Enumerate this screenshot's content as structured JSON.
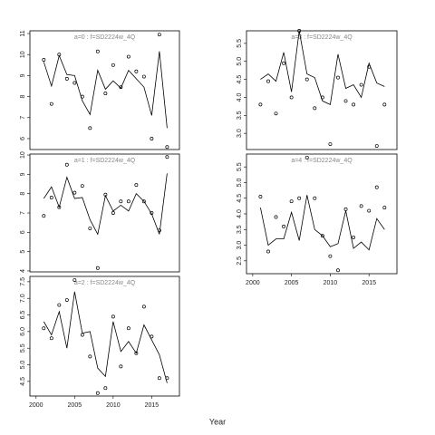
{
  "xlabel": "Year",
  "chart_data": [
    {
      "type": "line",
      "title": "a=0  :  f=SD2224w_4Q",
      "x": [
        2001,
        2002,
        2003,
        2004,
        2005,
        2006,
        2007,
        2008,
        2009,
        2010,
        2011,
        2012,
        2013,
        2014,
        2015,
        2016,
        2017
      ],
      "xlim": [
        1999.2,
        2018.6
      ],
      "ylim": [
        5.48,
        11.13
      ],
      "yticks": [
        6,
        7,
        8,
        9,
        10,
        11
      ],
      "series": [
        {
          "style": "line",
          "color": "#000000",
          "values": [
            9.65,
            8.5,
            9.95,
            9.05,
            9.0,
            7.8,
            7.15,
            9.25,
            8.35,
            8.75,
            8.4,
            9.25,
            8.85,
            8.45,
            7.1,
            10.15,
            6.5
          ]
        },
        {
          "style": "points",
          "color": "#000000",
          "values": [
            9.75,
            7.65,
            10.0,
            8.85,
            8.65,
            8.0,
            6.5,
            10.15,
            8.15,
            9.5,
            8.45,
            9.9,
            9.2,
            8.95,
            6.0,
            10.95,
            5.6
          ]
        }
      ]
    },
    {
      "type": "line",
      "title": "a=1  :  f=SD2224w_4Q",
      "x": [
        2001,
        2002,
        2003,
        2004,
        2005,
        2006,
        2007,
        2008,
        2009,
        2010,
        2011,
        2012,
        2013,
        2014,
        2015,
        2016,
        2017
      ],
      "xlim": [
        1999.2,
        2018.6
      ],
      "ylim": [
        3.95,
        10.05
      ],
      "yticks": [
        4,
        5,
        6,
        7,
        8,
        9,
        10
      ],
      "series": [
        {
          "style": "line",
          "color": "#000000",
          "values": [
            7.75,
            8.35,
            7.3,
            8.85,
            7.75,
            7.8,
            6.65,
            5.9,
            7.9,
            7.1,
            7.4,
            7.1,
            8.0,
            7.6,
            6.95,
            5.9,
            9.05
          ]
        },
        {
          "style": "points",
          "color": "#000000",
          "values": [
            6.85,
            7.8,
            7.3,
            9.5,
            8.05,
            8.4,
            6.2,
            4.15,
            7.95,
            7.0,
            7.6,
            7.6,
            8.45,
            7.6,
            7.0,
            6.1,
            9.9
          ]
        }
      ]
    },
    {
      "type": "line",
      "title": "a=2  :  f=SD2224w_4Q",
      "x": [
        2001,
        2002,
        2003,
        2004,
        2005,
        2006,
        2007,
        2008,
        2009,
        2010,
        2011,
        2012,
        2013,
        2014,
        2015,
        2016,
        2017
      ],
      "xlim": [
        1999.2,
        2018.6
      ],
      "xticks": [
        2000,
        2005,
        2010,
        2015
      ],
      "ylim": [
        4.06,
        7.66
      ],
      "yticks": [
        {
          "value": 4.5,
          "label": "4.5"
        },
        {
          "value": 5,
          "label": "5.0"
        },
        {
          "value": 5.5,
          "label": "5.5"
        },
        {
          "value": 6,
          "label": "6.0"
        },
        {
          "value": 6.5,
          "label": "6.5"
        },
        {
          "value": 7,
          "label": "7.0"
        },
        {
          "value": 7.5,
          "label": "7.5"
        }
      ],
      "series": [
        {
          "style": "line",
          "color": "#000000",
          "values": [
            6.3,
            5.9,
            6.6,
            5.5,
            7.2,
            5.95,
            6.0,
            4.9,
            4.65,
            6.3,
            5.4,
            5.7,
            5.35,
            6.2,
            5.75,
            5.3,
            4.45
          ]
        },
        {
          "style": "points",
          "color": "#000000",
          "values": [
            6.1,
            5.8,
            6.8,
            6.95,
            7.55,
            5.9,
            5.25,
            4.15,
            4.3,
            6.45,
            4.95,
            6.1,
            5.35,
            6.75,
            5.85,
            4.6,
            4.6
          ]
        }
      ]
    },
    {
      "type": "line",
      "title": "a=3  :  f=SD2224w_4Q",
      "x": [
        2001,
        2002,
        2003,
        2004,
        2005,
        2006,
        2007,
        2008,
        2009,
        2010,
        2011,
        2012,
        2013,
        2014,
        2015,
        2016,
        2017
      ],
      "xlim": [
        1999.2,
        2018.6
      ],
      "ylim": [
        2.55,
        5.85
      ],
      "yticks": [
        {
          "value": 3,
          "label": "3.0"
        },
        {
          "value": 3.5,
          "label": "3.5"
        },
        {
          "value": 4,
          "label": "4.0"
        },
        {
          "value": 4.5,
          "label": "4.5"
        },
        {
          "value": 5,
          "label": "5.0"
        },
        {
          "value": 5.5,
          "label": "5.5"
        }
      ],
      "series": [
        {
          "style": "line",
          "color": "#000000",
          "values": [
            4.5,
            4.65,
            4.45,
            5.25,
            4.15,
            5.85,
            4.65,
            4.55,
            3.9,
            3.8,
            5.2,
            4.25,
            4.35,
            4.0,
            4.95,
            4.4,
            4.3
          ]
        },
        {
          "style": "points",
          "color": "#000000",
          "values": [
            3.8,
            4.45,
            3.55,
            4.95,
            4.0,
            5.85,
            4.5,
            3.7,
            4.0,
            2.7,
            4.55,
            3.9,
            3.8,
            4.35,
            4.85,
            2.65,
            3.8
          ]
        }
      ]
    },
    {
      "type": "line",
      "title": "a=4  :  f=SD2224w_4Q",
      "x": [
        2001,
        2002,
        2003,
        2004,
        2005,
        2006,
        2007,
        2008,
        2009,
        2010,
        2011,
        2012,
        2013,
        2014,
        2015,
        2016,
        2017
      ],
      "xlim": [
        1999.2,
        2018.6
      ],
      "xticks": [
        2000,
        2005,
        2010,
        2015
      ],
      "ylim": [
        2.09,
        5.91
      ],
      "yticks": [
        {
          "value": 2.5,
          "label": "2.5"
        },
        {
          "value": 3,
          "label": "3.0"
        },
        {
          "value": 3.5,
          "label": "3.5"
        },
        {
          "value": 4,
          "label": "4.0"
        },
        {
          "value": 4.5,
          "label": "4.5"
        },
        {
          "value": 5,
          "label": "5.0"
        },
        {
          "value": 5.5,
          "label": "5.5"
        }
      ],
      "series": [
        {
          "style": "line",
          "color": "#000000",
          "values": [
            4.2,
            3.0,
            3.2,
            3.2,
            4.05,
            3.15,
            4.6,
            3.5,
            3.3,
            2.95,
            3.05,
            4.1,
            2.9,
            3.1,
            2.85,
            3.85,
            3.5
          ]
        },
        {
          "style": "points",
          "color": "#000000",
          "values": [
            4.55,
            2.8,
            3.9,
            3.6,
            4.4,
            4.5,
            5.8,
            4.5,
            3.3,
            2.65,
            2.2,
            4.15,
            3.25,
            4.25,
            4.1,
            4.85,
            4.2
          ]
        }
      ]
    }
  ]
}
